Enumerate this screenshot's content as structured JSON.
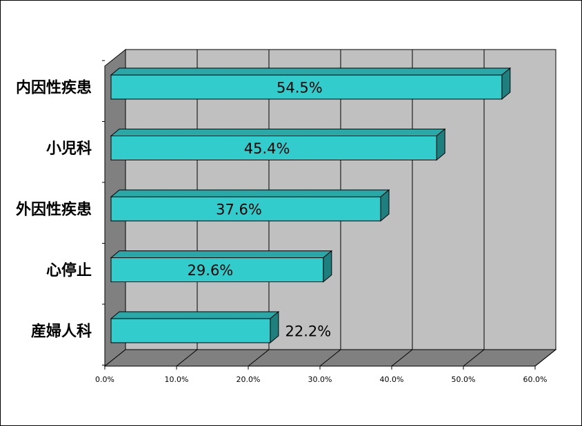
{
  "chart_data": {
    "type": "bar",
    "orientation": "horizontal",
    "three_d": true,
    "categories": [
      "内因性疾患",
      "小児科",
      "外因性疾患",
      "心停止",
      "産婦人科"
    ],
    "values": [
      54.5,
      45.4,
      37.6,
      29.6,
      22.2
    ],
    "data_labels": [
      "54.5%",
      "45.4%",
      "37.6%",
      "29.6%",
      "22.2%"
    ],
    "x_ticks": [
      "0.0%",
      "10.0%",
      "20.0%",
      "30.0%",
      "40.0%",
      "50.0%",
      "60.0%"
    ],
    "xlim": [
      0,
      60
    ],
    "title": "",
    "xlabel": "",
    "ylabel": "",
    "grid": true,
    "legend": "none",
    "colors": {
      "bar_front": "#33CCCC",
      "bar_top": "#2AA7A7",
      "bar_side": "#1E7F7F",
      "plot_wall": "#C0C0C0",
      "side_wall": "#808080",
      "floor": "#808080"
    }
  }
}
